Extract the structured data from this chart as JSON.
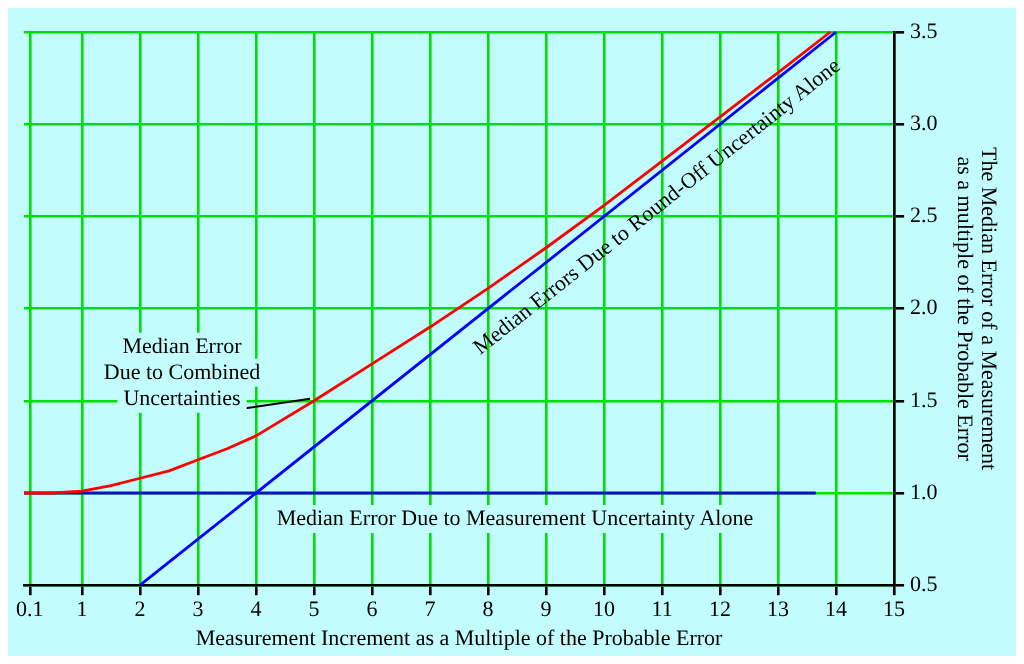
{
  "chart_data": {
    "type": "line",
    "xlabel": "Measurement Increment as a Multiple of the Probable Error",
    "ylabel": "The Median Error of a Measurement\nas a multiple of the Probable Error",
    "xlim": [
      0,
      15
    ],
    "ylim": [
      0.5,
      3.5
    ],
    "xticks": [
      0.1,
      1,
      2,
      3,
      4,
      5,
      6,
      7,
      8,
      9,
      10,
      11,
      12,
      13,
      14,
      15
    ],
    "yticks": [
      {
        "value": 0.5,
        "label": "0.5"
      },
      {
        "value": 1,
        "label": "1.0"
      },
      {
        "value": 1.5,
        "label": "1.5"
      },
      {
        "value": 2,
        "label": "2.0"
      },
      {
        "value": 2.5,
        "label": "2.5"
      },
      {
        "value": 3,
        "label": "3.0"
      },
      {
        "value": 3.5,
        "label": "3.5"
      }
    ],
    "grid": true,
    "legend": false,
    "marker": "none",
    "line_style": "solid",
    "series": [
      {
        "name": "Median Error Due to Combined Uncertainties",
        "color": "#ff0000",
        "x": [
          0,
          0.5,
          1,
          1.5,
          2,
          2.5,
          3,
          3.5,
          4,
          5,
          6,
          7,
          8,
          9,
          10,
          11,
          12,
          13,
          13.9
        ],
        "values": [
          1.0,
          1.0,
          1.01,
          1.04,
          1.08,
          1.12,
          1.18,
          1.24,
          1.31,
          1.5,
          1.7,
          1.9,
          2.11,
          2.33,
          2.56,
          2.8,
          3.04,
          3.28,
          3.5
        ]
      },
      {
        "name": "Median Errors Due to Round-Off Uncertainty Alone",
        "color": "#0000ff",
        "x": [
          2,
          14
        ],
        "values": [
          0.5,
          3.5
        ]
      },
      {
        "name": "Median Error Due to Measurement Uncertainty Alone",
        "color": "#1010c0",
        "x": [
          0,
          13.65
        ],
        "values": [
          1.0,
          1.0
        ]
      }
    ]
  }
}
